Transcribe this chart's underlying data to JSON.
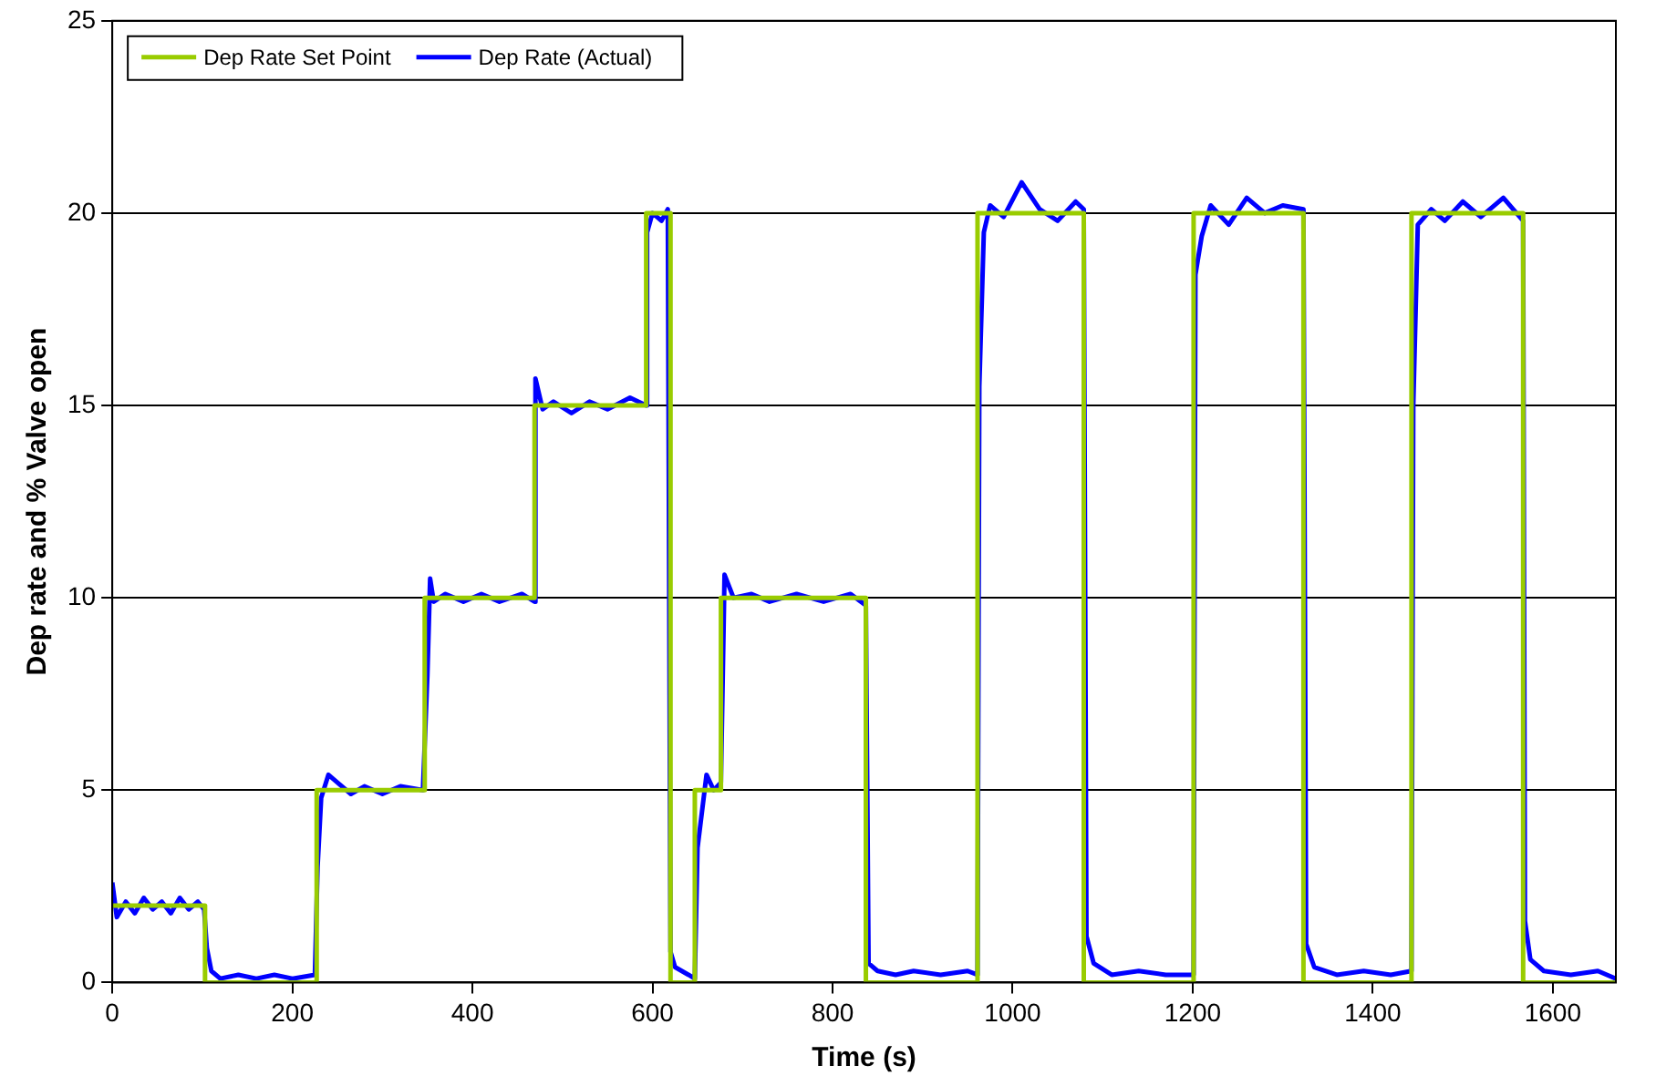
{
  "chart_data": {
    "type": "line",
    "xlabel": "Time (s)",
    "ylabel": "Dep rate and % Valve open",
    "xlim": [
      0,
      1670
    ],
    "ylim": [
      0,
      25
    ],
    "xticks": [
      0,
      200,
      400,
      600,
      800,
      1000,
      1200,
      1400,
      1600
    ],
    "yticks": [
      0,
      5,
      10,
      15,
      20,
      25
    ],
    "grid": "y",
    "legend": "top left",
    "marker": "none",
    "series": [
      {
        "name": "Dep Rate Set Point",
        "type": "step",
        "color": "#99cc00",
        "x": [
          0,
          103,
          227,
          347,
          469,
          593,
          620,
          647,
          676,
          837,
          961,
          1079,
          1201,
          1323,
          1443,
          1567,
          1670
        ],
        "values": [
          2,
          0,
          5,
          10,
          15,
          20,
          0,
          5,
          10,
          0,
          20,
          0,
          20,
          0,
          20,
          0,
          0
        ]
      },
      {
        "name": "Dep Rate (Actual)",
        "type": "line",
        "color": "#0000ff",
        "x": [
          0,
          5,
          15,
          25,
          35,
          45,
          55,
          65,
          75,
          85,
          95,
          102,
          105,
          110,
          120,
          140,
          160,
          180,
          200,
          225,
          228,
          232,
          240,
          250,
          265,
          280,
          300,
          320,
          345,
          350,
          353,
          357,
          370,
          390,
          410,
          430,
          455,
          469,
          470,
          478,
          490,
          510,
          530,
          550,
          575,
          593,
          594,
          600,
          610,
          617,
          620,
          625,
          640,
          647,
          650,
          660,
          668,
          676,
          680,
          690,
          710,
          730,
          760,
          790,
          820,
          837,
          840,
          850,
          870,
          890,
          920,
          950,
          961,
          963,
          968,
          975,
          990,
          1010,
          1030,
          1050,
          1070,
          1079,
          1082,
          1090,
          1110,
          1140,
          1170,
          1201,
          1203,
          1210,
          1220,
          1240,
          1260,
          1280,
          1300,
          1323,
          1326,
          1335,
          1360,
          1390,
          1420,
          1443,
          1445,
          1450,
          1465,
          1480,
          1500,
          1520,
          1545,
          1567,
          1569,
          1575,
          1590,
          1620,
          1650,
          1670
        ],
        "values": [
          2.6,
          1.7,
          2.1,
          1.8,
          2.2,
          1.9,
          2.1,
          1.8,
          2.2,
          1.9,
          2.1,
          1.9,
          0.9,
          0.3,
          0.1,
          0.2,
          0.1,
          0.2,
          0.1,
          0.2,
          3,
          4.8,
          5.4,
          5.2,
          4.9,
          5.1,
          4.9,
          5.1,
          5,
          8,
          10.5,
          9.9,
          10.1,
          9.9,
          10.1,
          9.9,
          10.1,
          9.9,
          15.7,
          14.9,
          15.1,
          14.8,
          15.1,
          14.9,
          15.2,
          15,
          19.5,
          20,
          19.8,
          20.1,
          0.8,
          0.4,
          0.2,
          0.1,
          3.5,
          5.4,
          5,
          5.2,
          10.6,
          10,
          10.1,
          9.9,
          10.1,
          9.9,
          10.1,
          9.8,
          0.5,
          0.3,
          0.2,
          0.3,
          0.2,
          0.3,
          0.2,
          15.5,
          19.5,
          20.2,
          19.9,
          20.8,
          20.1,
          19.8,
          20.3,
          20.1,
          1.2,
          0.5,
          0.2,
          0.3,
          0.2,
          0.2,
          18.4,
          19.4,
          20.2,
          19.7,
          20.4,
          20,
          20.2,
          20.1,
          1,
          0.4,
          0.2,
          0.3,
          0.2,
          0.3,
          15,
          19.7,
          20.1,
          19.8,
          20.3,
          19.9,
          20.4,
          19.8,
          1.6,
          0.6,
          0.3,
          0.2,
          0.3,
          0.1
        ]
      }
    ]
  }
}
